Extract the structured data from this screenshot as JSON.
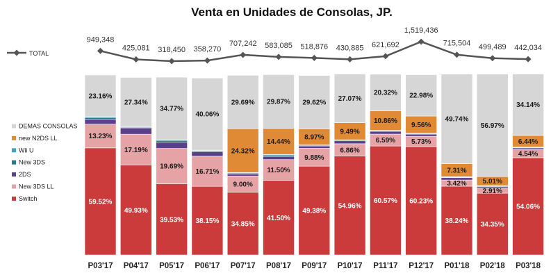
{
  "chart_data": {
    "type": "bar",
    "stacked": true,
    "title": "Venta en Unidades de Consolas,  JP.",
    "categories": [
      "P03'17",
      "P04'17",
      "P05'17",
      "P06'17",
      "P07'17",
      "P08'17",
      "P09'17",
      "P10'17",
      "P11'17",
      "P12'17",
      "P01'18",
      "P02'18",
      "P03'18"
    ],
    "ylim": [
      0,
      100
    ],
    "grid": false,
    "legend_placement": "left",
    "series": [
      {
        "name": "Switch",
        "color": "#cc3b3b",
        "values": [
          59.52,
          49.93,
          39.53,
          38.15,
          34.85,
          41.5,
          49.38,
          54.96,
          60.57,
          60.23,
          38.24,
          34.35,
          54.06
        ],
        "labels": [
          "59.52%",
          "49.93%",
          "39.53%",
          "38.15%",
          "34.85%",
          "41.50%",
          "49.38%",
          "54.96%",
          "60.57%",
          "60.23%",
          "38.24%",
          "34.35%",
          "54.06%"
        ]
      },
      {
        "name": "New 3DS LL",
        "color": "#e5a3a5",
        "values": [
          13.23,
          17.19,
          19.69,
          16.71,
          9.0,
          11.5,
          9.88,
          6.86,
          6.59,
          5.73,
          3.42,
          2.91,
          4.54
        ],
        "labels": [
          "13.23%",
          "17.19%",
          "19.69%",
          "16.71%",
          "9.00%",
          "11.50%",
          "9.88%",
          "6.86%",
          "6.59%",
          "5.73%",
          "3.42%",
          "2.91%",
          "4.54%"
        ]
      },
      {
        "name": "2DS",
        "color": "#5b3f8a",
        "values": [
          2.8,
          3.5,
          3.5,
          2.5,
          1.2,
          1.8,
          1.3,
          1.6,
          1.6,
          1.2,
          1.3,
          0.8,
          0.9
        ],
        "labels": [
          "",
          "",
          "",
          "",
          "",
          "",
          "",
          "",
          "",
          "",
          "",
          "",
          ""
        ]
      },
      {
        "name": "New 3DS",
        "color": "#2b7a8c",
        "values": [
          0.9,
          0.4,
          1.0,
          0.6,
          0.5,
          0.8,
          0.4,
          0.4,
          0.3,
          0.3,
          0.3,
          0.3,
          0.3
        ],
        "labels": [
          "",
          "",
          "",
          "",
          "",
          "",
          "",
          "",
          "",
          "",
          "",
          "",
          ""
        ]
      },
      {
        "name": "Wii U",
        "color": "#3fa4bf",
        "values": [
          0.4,
          0.3,
          0.3,
          0.3,
          0.3,
          0.3,
          0.2,
          0.2,
          0.2,
          0.2,
          0.2,
          0.2,
          0.2
        ],
        "labels": [
          "",
          "",
          "",
          "",
          "",
          "",
          "",
          "",
          "",
          "",
          "",
          "",
          ""
        ]
      },
      {
        "name": "new N2DS LL",
        "color": "#e08a35",
        "values": [
          0,
          0,
          0,
          0,
          24.32,
          14.44,
          8.97,
          9.49,
          10.86,
          9.56,
          7.31,
          5.01,
          6.44
        ],
        "labels": [
          "",
          "",
          "",
          "",
          "24.32%",
          "14.44%",
          "8.97%",
          "9.49%",
          "10.86%",
          "9.56%",
          "7.31%",
          "5.01%",
          "6.44%"
        ]
      },
      {
        "name": "DEMAS CONSOLAS",
        "color": "#d6d6d6",
        "values": [
          23.16,
          27.34,
          34.77,
          40.06,
          29.69,
          29.87,
          29.62,
          27.07,
          20.32,
          22.98,
          49.74,
          56.97,
          34.14
        ],
        "labels": [
          "23.16%",
          "27.34%",
          "34.77%",
          "40.06%",
          "29.69%",
          "29.87%",
          "29.62%",
          "27.07%",
          "20.32%",
          "22.98%",
          "49.74%",
          "56.97%",
          "34.14%"
        ]
      }
    ],
    "total": {
      "name": "TOTAL",
      "color": "#555555",
      "values": [
        949348,
        425081,
        318450,
        358270,
        707242,
        583085,
        518876,
        430885,
        621692,
        1519436,
        715504,
        499489,
        442034
      ],
      "labels": [
        "949,348",
        "425,081",
        "318,450",
        "358,270",
        "707,242",
        "583,085",
        "518,876",
        "430,885",
        "621,692",
        "1,519,436",
        "715,504",
        "499,489",
        "442,034"
      ]
    }
  }
}
